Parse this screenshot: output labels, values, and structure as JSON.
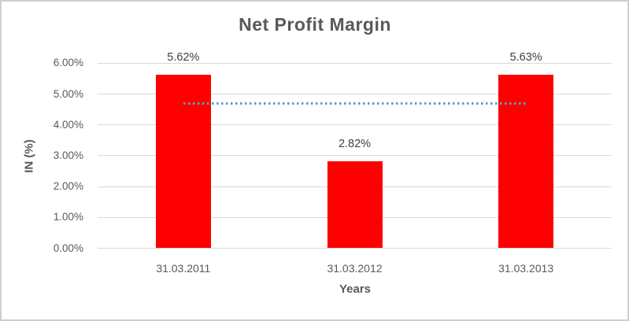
{
  "chart_data": {
    "type": "bar",
    "title": "Net Profit Margin",
    "xlabel": "Years",
    "ylabel": "IN (%)",
    "categories": [
      "31.03.2011",
      "31.03.2012",
      "31.03.2013"
    ],
    "series": [
      {
        "name": "Net Profit Margin",
        "values": [
          5.62,
          2.82,
          5.63
        ]
      }
    ],
    "data_labels": [
      "5.62%",
      "2.82%",
      "5.63%"
    ],
    "ylim": [
      0,
      6
    ],
    "ytick_labels": [
      "0.00%",
      "1.00%",
      "2.00%",
      "3.00%",
      "4.00%",
      "5.00%",
      "6.00%"
    ],
    "grid": true,
    "legend": "none",
    "bar_color": "#FF0000",
    "gridline_color": "#D9D9D9",
    "trendline": {
      "type": "linear",
      "value": 4.69,
      "style": "dotted",
      "color": "#5B9BD5",
      "from_category_index": 0,
      "to_category_index": 2
    },
    "text_colors": {
      "title": "#595959",
      "axis_titles": "#595959",
      "tick_labels": "#595959",
      "data_labels": "#404040"
    },
    "frame_border_color": "#D0CECE",
    "background": "#FFFFFF"
  }
}
